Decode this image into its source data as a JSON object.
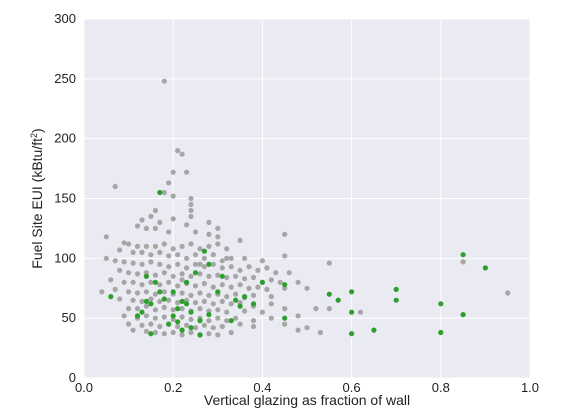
{
  "chart_data": {
    "type": "scatter",
    "xlabel": "Vertical glazing as fraction of wall",
    "ylabel_main": "Fuel Site EUI (kBtu/ft",
    "ylabel_sup": "2",
    "ylabel_close": ")",
    "xlim": [
      0.0,
      1.0
    ],
    "ylim": [
      0,
      300
    ],
    "xticks": [
      0.0,
      0.2,
      0.4,
      0.6,
      0.8,
      1.0
    ],
    "xtick_labels": [
      "0.0",
      "0.2",
      "0.4",
      "0.6",
      "0.8",
      "1.0"
    ],
    "yticks": [
      0,
      50,
      100,
      150,
      200,
      250,
      300
    ],
    "ytick_labels": [
      "0",
      "50",
      "100",
      "150",
      "200",
      "250",
      "300"
    ],
    "grid": true,
    "colors": {
      "background": "#eaeaf2",
      "grid": "#ffffff",
      "gray_series": "#a6a6a6",
      "green_series": "#2ca02c"
    },
    "series": [
      {
        "color": "#a6a6a6",
        "points": [
          [
            0.18,
            248
          ],
          [
            0.21,
            190
          ],
          [
            0.22,
            187
          ],
          [
            0.2,
            172
          ],
          [
            0.23,
            172
          ],
          [
            0.07,
            160
          ],
          [
            0.19,
            163
          ],
          [
            0.18,
            155
          ],
          [
            0.2,
            152
          ],
          [
            0.24,
            150
          ],
          [
            0.24,
            145
          ],
          [
            0.24,
            140
          ],
          [
            0.16,
            140
          ],
          [
            0.15,
            135
          ],
          [
            0.2,
            133
          ],
          [
            0.24,
            135
          ],
          [
            0.13,
            132
          ],
          [
            0.17,
            130
          ],
          [
            0.23,
            128
          ],
          [
            0.12,
            127
          ],
          [
            0.14,
            125
          ],
          [
            0.16,
            125
          ],
          [
            0.19,
            122
          ],
          [
            0.25,
            122
          ],
          [
            0.28,
            120
          ],
          [
            0.3,
            118
          ],
          [
            0.45,
            120
          ],
          [
            0.05,
            118
          ],
          [
            0.09,
            113
          ],
          [
            0.1,
            112
          ],
          [
            0.12,
            110
          ],
          [
            0.14,
            110
          ],
          [
            0.16,
            110
          ],
          [
            0.18,
            112
          ],
          [
            0.2,
            108
          ],
          [
            0.22,
            110
          ],
          [
            0.24,
            112
          ],
          [
            0.26,
            108
          ],
          [
            0.28,
            110
          ],
          [
            0.3,
            112
          ],
          [
            0.32,
            108
          ],
          [
            0.35,
            115
          ],
          [
            0.08,
            107
          ],
          [
            0.11,
            105
          ],
          [
            0.13,
            105
          ],
          [
            0.15,
            103
          ],
          [
            0.17,
            105
          ],
          [
            0.19,
            102
          ],
          [
            0.21,
            103
          ],
          [
            0.23,
            100
          ],
          [
            0.25,
            103
          ],
          [
            0.27,
            100
          ],
          [
            0.29,
            103
          ],
          [
            0.31,
            98
          ],
          [
            0.33,
            100
          ],
          [
            0.36,
            100
          ],
          [
            0.4,
            98
          ],
          [
            0.45,
            102
          ],
          [
            0.05,
            100
          ],
          [
            0.07,
            98
          ],
          [
            0.09,
            97
          ],
          [
            0.11,
            96
          ],
          [
            0.13,
            95
          ],
          [
            0.15,
            97
          ],
          [
            0.17,
            95
          ],
          [
            0.19,
            93
          ],
          [
            0.21,
            95
          ],
          [
            0.23,
            92
          ],
          [
            0.25,
            95
          ],
          [
            0.27,
            93
          ],
          [
            0.29,
            95
          ],
          [
            0.31,
            92
          ],
          [
            0.33,
            93
          ],
          [
            0.35,
            90
          ],
          [
            0.37,
            93
          ],
          [
            0.39,
            90
          ],
          [
            0.41,
            92
          ],
          [
            0.43,
            88
          ],
          [
            0.46,
            88
          ],
          [
            0.55,
            96
          ],
          [
            0.08,
            90
          ],
          [
            0.1,
            88
          ],
          [
            0.12,
            87
          ],
          [
            0.14,
            88
          ],
          [
            0.16,
            86
          ],
          [
            0.18,
            88
          ],
          [
            0.2,
            85
          ],
          [
            0.22,
            87
          ],
          [
            0.24,
            85
          ],
          [
            0.26,
            87
          ],
          [
            0.28,
            85
          ],
          [
            0.3,
            86
          ],
          [
            0.32,
            84
          ],
          [
            0.34,
            85
          ],
          [
            0.36,
            83
          ],
          [
            0.38,
            84
          ],
          [
            0.4,
            80
          ],
          [
            0.42,
            82
          ],
          [
            0.44,
            80
          ],
          [
            0.48,
            80
          ],
          [
            0.06,
            82
          ],
          [
            0.09,
            80
          ],
          [
            0.11,
            80
          ],
          [
            0.13,
            78
          ],
          [
            0.15,
            80
          ],
          [
            0.17,
            78
          ],
          [
            0.19,
            80
          ],
          [
            0.21,
            77
          ],
          [
            0.23,
            79
          ],
          [
            0.25,
            77
          ],
          [
            0.27,
            79
          ],
          [
            0.29,
            76
          ],
          [
            0.31,
            78
          ],
          [
            0.33,
            76
          ],
          [
            0.35,
            78
          ],
          [
            0.37,
            75
          ],
          [
            0.39,
            76
          ],
          [
            0.41,
            74
          ],
          [
            0.45,
            75
          ],
          [
            0.5,
            75
          ],
          [
            0.04,
            72
          ],
          [
            0.07,
            74
          ],
          [
            0.1,
            72
          ],
          [
            0.12,
            71
          ],
          [
            0.14,
            72
          ],
          [
            0.16,
            70
          ],
          [
            0.18,
            72
          ],
          [
            0.2,
            70
          ],
          [
            0.22,
            71
          ],
          [
            0.24,
            69
          ],
          [
            0.26,
            71
          ],
          [
            0.28,
            69
          ],
          [
            0.3,
            70
          ],
          [
            0.32,
            68
          ],
          [
            0.34,
            70
          ],
          [
            0.36,
            67
          ],
          [
            0.38,
            69
          ],
          [
            0.42,
            68
          ],
          [
            0.08,
            66
          ],
          [
            0.11,
            65
          ],
          [
            0.13,
            64
          ],
          [
            0.15,
            66
          ],
          [
            0.17,
            64
          ],
          [
            0.19,
            65
          ],
          [
            0.21,
            63
          ],
          [
            0.23,
            65
          ],
          [
            0.25,
            63
          ],
          [
            0.27,
            64
          ],
          [
            0.29,
            62
          ],
          [
            0.31,
            64
          ],
          [
            0.33,
            62
          ],
          [
            0.35,
            63
          ],
          [
            0.38,
            60
          ],
          [
            0.42,
            62
          ],
          [
            0.1,
            58
          ],
          [
            0.12,
            58
          ],
          [
            0.14,
            60
          ],
          [
            0.16,
            57
          ],
          [
            0.18,
            59
          ],
          [
            0.2,
            57
          ],
          [
            0.22,
            58
          ],
          [
            0.24,
            56
          ],
          [
            0.26,
            58
          ],
          [
            0.28,
            56
          ],
          [
            0.3,
            57
          ],
          [
            0.32,
            55
          ],
          [
            0.36,
            56
          ],
          [
            0.4,
            55
          ],
          [
            0.45,
            58
          ],
          [
            0.52,
            58
          ],
          [
            0.09,
            52
          ],
          [
            0.12,
            50
          ],
          [
            0.14,
            52
          ],
          [
            0.16,
            50
          ],
          [
            0.18,
            51
          ],
          [
            0.2,
            49
          ],
          [
            0.22,
            51
          ],
          [
            0.24,
            49
          ],
          [
            0.26,
            50
          ],
          [
            0.28,
            48
          ],
          [
            0.3,
            50
          ],
          [
            0.32,
            48
          ],
          [
            0.34,
            50
          ],
          [
            0.38,
            48
          ],
          [
            0.42,
            50
          ],
          [
            0.48,
            52
          ],
          [
            0.1,
            45
          ],
          [
            0.13,
            44
          ],
          [
            0.15,
            45
          ],
          [
            0.17,
            43
          ],
          [
            0.19,
            45
          ],
          [
            0.21,
            43
          ],
          [
            0.23,
            44
          ],
          [
            0.25,
            42
          ],
          [
            0.27,
            44
          ],
          [
            0.29,
            42
          ],
          [
            0.31,
            43
          ],
          [
            0.35,
            45
          ],
          [
            0.38,
            43
          ],
          [
            0.45,
            45
          ],
          [
            0.5,
            42
          ],
          [
            0.11,
            40
          ],
          [
            0.14,
            39
          ],
          [
            0.16,
            38
          ],
          [
            0.18,
            37
          ],
          [
            0.2,
            38
          ],
          [
            0.22,
            36
          ],
          [
            0.24,
            38
          ],
          [
            0.26,
            36
          ],
          [
            0.28,
            37
          ],
          [
            0.3,
            36
          ],
          [
            0.33,
            38
          ],
          [
            0.48,
            40
          ],
          [
            0.53,
            38
          ],
          [
            0.85,
            97
          ],
          [
            0.95,
            71
          ],
          [
            0.55,
            58
          ],
          [
            0.62,
            55
          ],
          [
            0.28,
            130
          ],
          [
            0.3,
            125
          ],
          [
            0.32,
            100
          ],
          [
            0.26,
            95
          ],
          [
            0.22,
            82
          ]
        ]
      },
      {
        "color": "#2ca02c",
        "points": [
          [
            0.17,
            155
          ],
          [
            0.85,
            103
          ],
          [
            0.9,
            92
          ],
          [
            0.06,
            68
          ],
          [
            0.14,
            85
          ],
          [
            0.17,
            72
          ],
          [
            0.18,
            66
          ],
          [
            0.2,
            72
          ],
          [
            0.21,
            58
          ],
          [
            0.22,
            64
          ],
          [
            0.14,
            64
          ],
          [
            0.15,
            62
          ],
          [
            0.13,
            55
          ],
          [
            0.12,
            52
          ],
          [
            0.24,
            55
          ],
          [
            0.26,
            48
          ],
          [
            0.25,
            88
          ],
          [
            0.27,
            106
          ],
          [
            0.28,
            95
          ],
          [
            0.23,
            62
          ],
          [
            0.21,
            47
          ],
          [
            0.19,
            45
          ],
          [
            0.22,
            40
          ],
          [
            0.24,
            42
          ],
          [
            0.26,
            36
          ],
          [
            0.28,
            53
          ],
          [
            0.3,
            72
          ],
          [
            0.31,
            85
          ],
          [
            0.33,
            48
          ],
          [
            0.34,
            65
          ],
          [
            0.35,
            60
          ],
          [
            0.36,
            68
          ],
          [
            0.38,
            62
          ],
          [
            0.4,
            80
          ],
          [
            0.45,
            78
          ],
          [
            0.45,
            50
          ],
          [
            0.55,
            70
          ],
          [
            0.57,
            65
          ],
          [
            0.6,
            72
          ],
          [
            0.6,
            55
          ],
          [
            0.6,
            37
          ],
          [
            0.65,
            40
          ],
          [
            0.7,
            74
          ],
          [
            0.7,
            65
          ],
          [
            0.8,
            62
          ],
          [
            0.8,
            38
          ],
          [
            0.85,
            53
          ],
          [
            0.15,
            37
          ],
          [
            0.2,
            52
          ],
          [
            0.23,
            80
          ],
          [
            0.16,
            80
          ]
        ]
      }
    ]
  }
}
